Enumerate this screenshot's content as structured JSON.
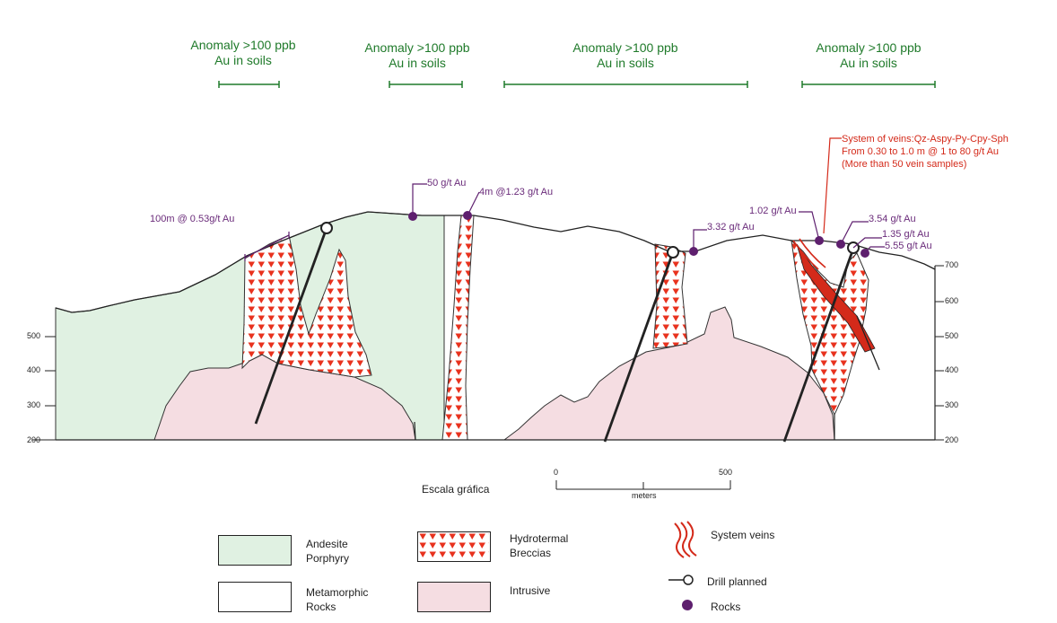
{
  "anomalies": [
    {
      "label1": "Anomaly >100 ppb",
      "label2": "Au in soils"
    },
    {
      "label1": "Anomaly >100 ppb",
      "label2": "Au in soils"
    },
    {
      "label1": "Anomaly >100 ppb",
      "label2": "Au in soils"
    },
    {
      "label1": "Anomaly >100 ppb",
      "label2": "Au in soils"
    }
  ],
  "samples": {
    "s1": "100m @ 0.53g/t Au",
    "s2": "50 g/t Au",
    "s3": "4m @1.23 g/t Au",
    "s4": "3.32 g/t Au",
    "s5": "1.02 g/t Au",
    "s6": "3.54 g/t Au",
    "s7": "1.35 g/t Au",
    "s8": "5.55 g/t Au"
  },
  "vein_note": {
    "line1": "System of veins:Qz-Aspy-Py-Cpy-Sph",
    "line2": "From 0.30 to 1.0 m @ 1 to 80 g/t Au",
    "line3": "(More than 50 vein samples)"
  },
  "elevation_left": [
    "500",
    "400",
    "300",
    "200"
  ],
  "elevation_right": [
    "700",
    "600",
    "500",
    "400",
    "300",
    "200"
  ],
  "scale": {
    "title": "Escala gráfica",
    "start": "0",
    "end": "500",
    "unit": "meters"
  },
  "legend": {
    "andesite_l1": "Andesite",
    "andesite_l2": "Porphyry",
    "metamorphic_l1": "Metamorphic",
    "metamorphic_l2": "Rocks",
    "breccia_l1": "Hydrotermal",
    "breccia_l2": "Breccias",
    "intrusive": "Intrusive",
    "veins": "System veins",
    "drill": "Drill planned",
    "rocks": "Rocks"
  },
  "colors": {
    "andesite": "#e0f1e2",
    "intrusive": "#f5dde2",
    "breccia": "#e8321e",
    "anomaly": "#1f7a2a",
    "sample": "#5e1f6e",
    "vein": "#d42a1a"
  }
}
